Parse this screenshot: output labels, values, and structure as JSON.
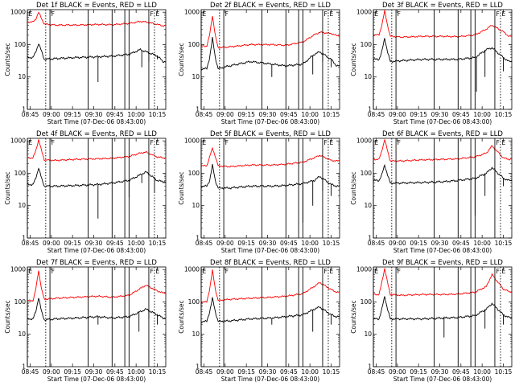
{
  "chart_data": {
    "type": "line",
    "grid": "3x3",
    "yscale": "log",
    "ylim": [
      1,
      1200
    ],
    "ylabel": "Counts/sec",
    "xlabel": "Start Time (07-Dec-06 08:43:00)",
    "xlim_minutes": [
      0,
      98
    ],
    "x_ticks": [
      "08:45",
      "09:00",
      "09:15",
      "09:30",
      "09:45",
      "10:00",
      "10:15"
    ],
    "y_ticks": [
      "1",
      "10",
      "100",
      "1000"
    ],
    "marker_labels": {
      "start": "E",
      "flare": "F",
      "end": "E"
    },
    "panels": [
      {
        "title": "Det 1f BLACK = Events, RED = LLD",
        "red": [
          [
            0,
            500
          ],
          [
            4,
            500
          ],
          [
            6,
            620
          ],
          [
            8,
            1000
          ],
          [
            10,
            640
          ],
          [
            12,
            430
          ],
          [
            20,
            400
          ],
          [
            35,
            400
          ],
          [
            50,
            420
          ],
          [
            60,
            410
          ],
          [
            72,
            450
          ],
          [
            80,
            520
          ],
          [
            84,
            500
          ],
          [
            92,
            420
          ],
          [
            96,
            380
          ]
        ],
        "black": [
          [
            0,
            40
          ],
          [
            4,
            40
          ],
          [
            6,
            60
          ],
          [
            8,
            110
          ],
          [
            10,
            62
          ],
          [
            12,
            35
          ],
          [
            20,
            37
          ],
          [
            35,
            40
          ],
          [
            50,
            42
          ],
          [
            60,
            44
          ],
          [
            72,
            50
          ],
          [
            80,
            70
          ],
          [
            84,
            60
          ],
          [
            92,
            45
          ],
          [
            96,
            30
          ]
        ],
        "dips": [
          [
            50,
            7
          ],
          [
            81,
            20
          ],
          [
            86,
            30
          ],
          [
            92,
            35
          ]
        ]
      },
      {
        "title": "Det 2f BLACK = Events, RED = LLD",
        "red": [
          [
            0,
            90
          ],
          [
            4,
            90
          ],
          [
            6,
            200
          ],
          [
            8,
            800
          ],
          [
            10,
            190
          ],
          [
            12,
            80
          ],
          [
            20,
            85
          ],
          [
            35,
            100
          ],
          [
            50,
            100
          ],
          [
            60,
            95
          ],
          [
            72,
            120
          ],
          [
            80,
            200
          ],
          [
            84,
            240
          ],
          [
            92,
            220
          ],
          [
            96,
            190
          ]
        ],
        "black": [
          [
            0,
            18
          ],
          [
            4,
            18
          ],
          [
            6,
            40
          ],
          [
            8,
            160
          ],
          [
            10,
            40
          ],
          [
            12,
            18
          ],
          [
            20,
            22
          ],
          [
            35,
            30
          ],
          [
            50,
            25
          ],
          [
            60,
            22
          ],
          [
            72,
            25
          ],
          [
            80,
            50
          ],
          [
            84,
            60
          ],
          [
            92,
            35
          ],
          [
            96,
            22
          ]
        ],
        "dips": [
          [
            50,
            10
          ],
          [
            79,
            12
          ],
          [
            86,
            30
          ],
          [
            92,
            20
          ]
        ]
      },
      {
        "title": "Det 3f BLACK = Events, RED = LLD",
        "red": [
          [
            0,
            200
          ],
          [
            4,
            200
          ],
          [
            6,
            400
          ],
          [
            8,
            1100
          ],
          [
            10,
            400
          ],
          [
            12,
            180
          ],
          [
            20,
            170
          ],
          [
            35,
            180
          ],
          [
            50,
            180
          ],
          [
            60,
            175
          ],
          [
            72,
            200
          ],
          [
            80,
            300
          ],
          [
            84,
            400
          ],
          [
            92,
            250
          ],
          [
            96,
            180
          ]
        ],
        "black": [
          [
            0,
            35
          ],
          [
            4,
            35
          ],
          [
            6,
            60
          ],
          [
            8,
            160
          ],
          [
            10,
            60
          ],
          [
            12,
            30
          ],
          [
            20,
            32
          ],
          [
            35,
            35
          ],
          [
            50,
            35
          ],
          [
            60,
            35
          ],
          [
            72,
            40
          ],
          [
            80,
            70
          ],
          [
            84,
            80
          ],
          [
            92,
            40
          ],
          [
            96,
            30
          ]
        ],
        "dips": [
          [
            73,
            3.5
          ],
          [
            79,
            10
          ],
          [
            86,
            40
          ],
          [
            92,
            15
          ]
        ]
      },
      {
        "title": "Det 4f BLACK = Events, RED = LLD",
        "red": [
          [
            0,
            300
          ],
          [
            4,
            300
          ],
          [
            6,
            500
          ],
          [
            8,
            1100
          ],
          [
            10,
            500
          ],
          [
            12,
            260
          ],
          [
            20,
            250
          ],
          [
            35,
            270
          ],
          [
            50,
            280
          ],
          [
            60,
            290
          ],
          [
            72,
            330
          ],
          [
            80,
            420
          ],
          [
            84,
            450
          ],
          [
            92,
            320
          ],
          [
            96,
            300
          ]
        ],
        "black": [
          [
            0,
            45
          ],
          [
            4,
            45
          ],
          [
            6,
            70
          ],
          [
            8,
            150
          ],
          [
            10,
            70
          ],
          [
            12,
            40
          ],
          [
            20,
            40
          ],
          [
            35,
            42
          ],
          [
            50,
            45
          ],
          [
            60,
            50
          ],
          [
            72,
            60
          ],
          [
            80,
            90
          ],
          [
            84,
            110
          ],
          [
            92,
            60
          ],
          [
            96,
            55
          ]
        ],
        "dips": [
          [
            50,
            4
          ],
          [
            72,
            18
          ],
          [
            81,
            50
          ],
          [
            90,
            25
          ]
        ]
      },
      {
        "title": "Det 5f BLACK = Events, RED = LLD",
        "red": [
          [
            0,
            170
          ],
          [
            4,
            170
          ],
          [
            6,
            320
          ],
          [
            8,
            600
          ],
          [
            10,
            330
          ],
          [
            12,
            170
          ],
          [
            20,
            160
          ],
          [
            35,
            180
          ],
          [
            50,
            180
          ],
          [
            60,
            190
          ],
          [
            72,
            220
          ],
          [
            80,
            300
          ],
          [
            84,
            360
          ],
          [
            92,
            250
          ],
          [
            96,
            240
          ]
        ],
        "black": [
          [
            0,
            40
          ],
          [
            4,
            40
          ],
          [
            6,
            60
          ],
          [
            8,
            180
          ],
          [
            10,
            60
          ],
          [
            12,
            35
          ],
          [
            20,
            35
          ],
          [
            35,
            40
          ],
          [
            50,
            40
          ],
          [
            60,
            42
          ],
          [
            72,
            48
          ],
          [
            80,
            60
          ],
          [
            84,
            80
          ],
          [
            92,
            45
          ],
          [
            96,
            40
          ]
        ],
        "dips": [
          [
            72,
            3
          ],
          [
            79,
            10
          ],
          [
            86,
            30
          ],
          [
            92,
            20
          ]
        ]
      },
      {
        "title": "Det 6f BLACK = Events, RED = LLD",
        "red": [
          [
            0,
            270
          ],
          [
            4,
            270
          ],
          [
            6,
            500
          ],
          [
            8,
            1100
          ],
          [
            10,
            500
          ],
          [
            12,
            240
          ],
          [
            20,
            240
          ],
          [
            35,
            260
          ],
          [
            50,
            270
          ],
          [
            60,
            280
          ],
          [
            72,
            320
          ],
          [
            80,
            420
          ],
          [
            84,
            700
          ],
          [
            92,
            300
          ],
          [
            96,
            270
          ]
        ],
        "black": [
          [
            0,
            60
          ],
          [
            4,
            60
          ],
          [
            6,
            90
          ],
          [
            8,
            180
          ],
          [
            10,
            90
          ],
          [
            12,
            50
          ],
          [
            20,
            50
          ],
          [
            35,
            52
          ],
          [
            50,
            55
          ],
          [
            60,
            60
          ],
          [
            72,
            70
          ],
          [
            80,
            100
          ],
          [
            84,
            150
          ],
          [
            92,
            70
          ],
          [
            96,
            60
          ]
        ],
        "dips": [
          [
            72,
            5
          ],
          [
            79,
            20
          ],
          [
            86,
            30
          ],
          [
            92,
            40
          ]
        ]
      },
      {
        "title": "Det 7f BLACK = Events, RED = LLD",
        "red": [
          [
            0,
            110
          ],
          [
            4,
            110
          ],
          [
            6,
            250
          ],
          [
            8,
            950
          ],
          [
            10,
            250
          ],
          [
            12,
            120
          ],
          [
            20,
            130
          ],
          [
            35,
            140
          ],
          [
            50,
            150
          ],
          [
            60,
            140
          ],
          [
            72,
            160
          ],
          [
            80,
            260
          ],
          [
            84,
            330
          ],
          [
            92,
            220
          ],
          [
            96,
            190
          ]
        ],
        "black": [
          [
            0,
            30
          ],
          [
            4,
            30
          ],
          [
            6,
            50
          ],
          [
            8,
            140
          ],
          [
            10,
            50
          ],
          [
            12,
            28
          ],
          [
            20,
            30
          ],
          [
            35,
            32
          ],
          [
            50,
            35
          ],
          [
            60,
            32
          ],
          [
            72,
            35
          ],
          [
            80,
            50
          ],
          [
            84,
            60
          ],
          [
            92,
            40
          ],
          [
            96,
            32
          ]
        ],
        "dips": [
          [
            50,
            20
          ],
          [
            79,
            12
          ],
          [
            86,
            30
          ],
          [
            92,
            20
          ]
        ]
      },
      {
        "title": "Det 8f BLACK = Events, RED = LLD",
        "red": [
          [
            0,
            100
          ],
          [
            4,
            100
          ],
          [
            6,
            250
          ],
          [
            8,
            950
          ],
          [
            10,
            250
          ],
          [
            12,
            110
          ],
          [
            20,
            120
          ],
          [
            35,
            130
          ],
          [
            50,
            140
          ],
          [
            60,
            150
          ],
          [
            72,
            180
          ],
          [
            80,
            300
          ],
          [
            84,
            400
          ],
          [
            92,
            240
          ],
          [
            96,
            200
          ]
        ],
        "black": [
          [
            0,
            25
          ],
          [
            4,
            25
          ],
          [
            6,
            50
          ],
          [
            8,
            130
          ],
          [
            10,
            50
          ],
          [
            12,
            25
          ],
          [
            20,
            26
          ],
          [
            35,
            30
          ],
          [
            50,
            32
          ],
          [
            60,
            35
          ],
          [
            72,
            40
          ],
          [
            80,
            60
          ],
          [
            84,
            70
          ],
          [
            92,
            40
          ],
          [
            96,
            35
          ]
        ],
        "dips": [
          [
            50,
            20
          ],
          [
            79,
            12
          ],
          [
            86,
            30
          ],
          [
            92,
            20
          ]
        ]
      },
      {
        "title": "Det 9f BLACK = Events, RED = LLD",
        "red": [
          [
            0,
            170
          ],
          [
            4,
            170
          ],
          [
            6,
            400
          ],
          [
            8,
            1100
          ],
          [
            10,
            400
          ],
          [
            12,
            170
          ],
          [
            20,
            160
          ],
          [
            35,
            170
          ],
          [
            50,
            170
          ],
          [
            60,
            175
          ],
          [
            72,
            200
          ],
          [
            80,
            300
          ],
          [
            84,
            700
          ],
          [
            92,
            250
          ],
          [
            96,
            210
          ]
        ],
        "black": [
          [
            0,
            30
          ],
          [
            4,
            30
          ],
          [
            6,
            60
          ],
          [
            8,
            150
          ],
          [
            10,
            60
          ],
          [
            12,
            30
          ],
          [
            20,
            30
          ],
          [
            35,
            30
          ],
          [
            50,
            32
          ],
          [
            60,
            33
          ],
          [
            72,
            38
          ],
          [
            80,
            60
          ],
          [
            84,
            90
          ],
          [
            92,
            40
          ],
          [
            96,
            33
          ]
        ],
        "dips": [
          [
            50,
            8
          ],
          [
            79,
            15
          ],
          [
            86,
            30
          ],
          [
            92,
            20
          ]
        ]
      }
    ],
    "vertical_lines": {
      "solid_minutes": [
        0,
        16,
        43,
        60,
        69,
        72,
        86
      ],
      "dotted_minutes": [
        13,
        90
      ]
    },
    "series": [
      {
        "name": "BLACK = Events",
        "color": "#000000"
      },
      {
        "name": "RED = LLD",
        "color": "#ff0000"
      }
    ]
  }
}
